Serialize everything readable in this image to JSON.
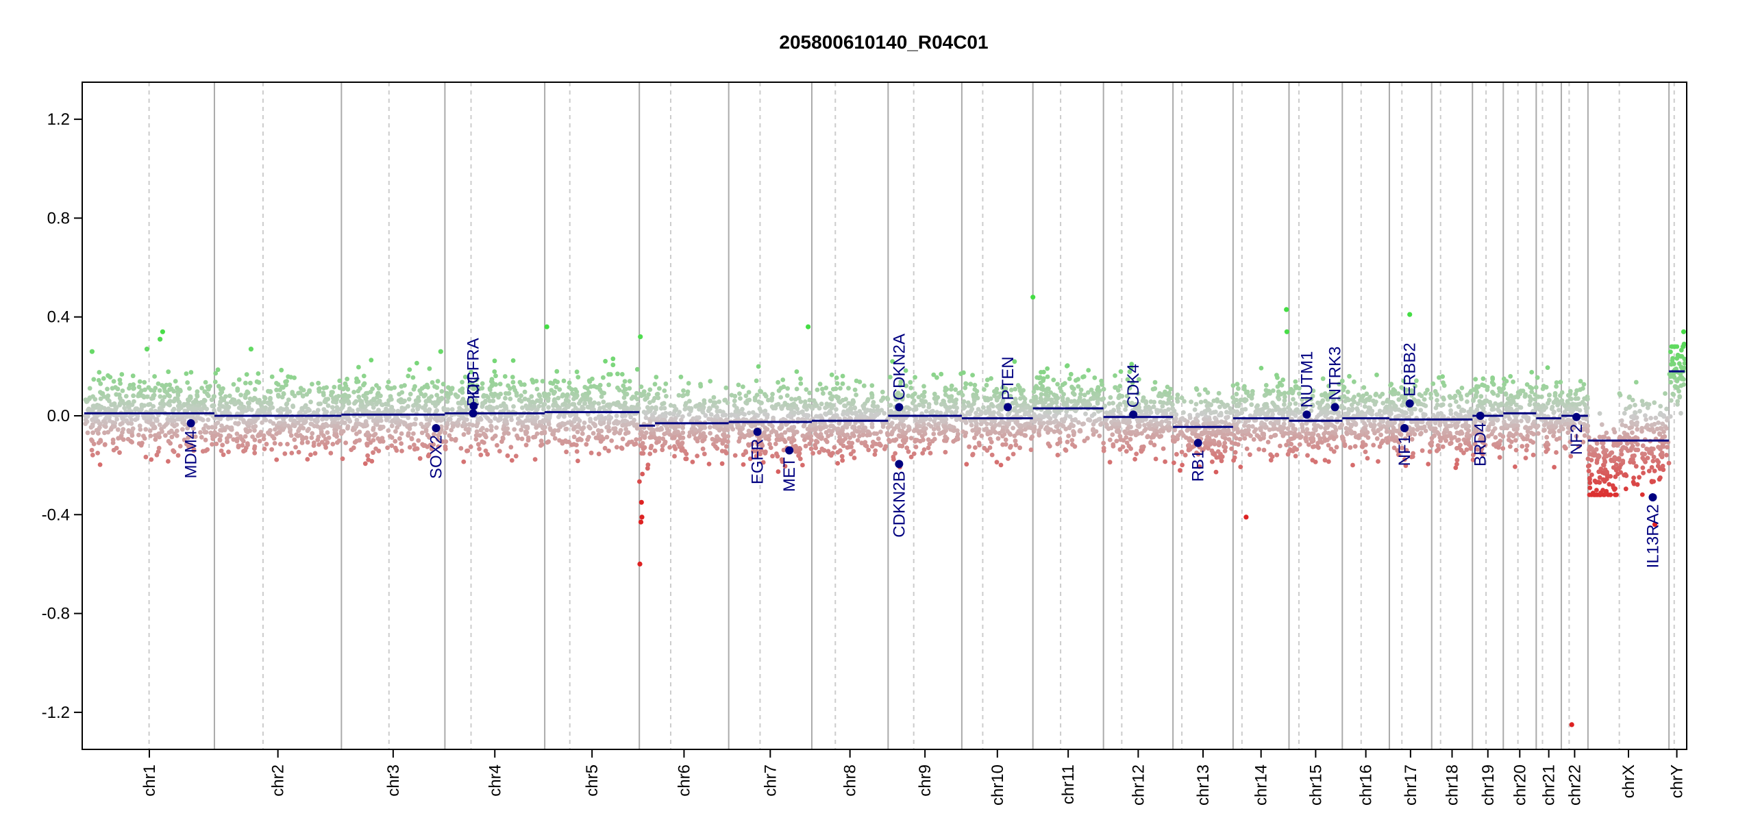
{
  "chart_data": {
    "type": "scatter",
    "title": "205800610140_R04C01",
    "xlabel": "",
    "ylabel": "",
    "ylim": [
      -1.35,
      1.35
    ],
    "yticks": [
      -1.2,
      -0.8,
      -0.4,
      0.0,
      0.4,
      0.8,
      1.2
    ],
    "ytick_labels": [
      "-1.2",
      "-0.8",
      "-0.4",
      "0.0",
      "0.4",
      "0.8",
      "1.2"
    ],
    "colors": {
      "gain": "#44dd44",
      "loss": "#dd2222",
      "neutral": "#cccccc",
      "segment": "#000080",
      "gene": "#000080",
      "chr_border": "#aaaaaa",
      "centromere": "#cccccc"
    },
    "chromosomes": [
      {
        "label": "chr1",
        "length": 249,
        "centromere": 124,
        "segments": [
          {
            "from": 0,
            "to": 249,
            "value": 0.01
          }
        ]
      },
      {
        "label": "chr2",
        "length": 243,
        "centromere": 93,
        "segments": [
          {
            "from": 0,
            "to": 243,
            "value": 0.0
          }
        ]
      },
      {
        "label": "chr3",
        "length": 198,
        "centromere": 91,
        "segments": [
          {
            "from": 0,
            "to": 198,
            "value": 0.005
          }
        ]
      },
      {
        "label": "chr4",
        "length": 191,
        "centromere": 50,
        "segments": [
          {
            "from": 0,
            "to": 191,
            "value": 0.01
          }
        ]
      },
      {
        "label": "chr5",
        "length": 181,
        "centromere": 48,
        "segments": [
          {
            "from": 0,
            "to": 181,
            "value": 0.015
          }
        ]
      },
      {
        "label": "chr6",
        "length": 171,
        "centromere": 60,
        "segments": [
          {
            "from": 0,
            "to": 30,
            "value": -0.04
          },
          {
            "from": 30,
            "to": 171,
            "value": -0.03
          }
        ]
      },
      {
        "label": "chr7",
        "length": 159,
        "centromere": 60,
        "segments": [
          {
            "from": 0,
            "to": 159,
            "value": -0.025
          }
        ]
      },
      {
        "label": "chr8",
        "length": 146,
        "centromere": 45,
        "segments": [
          {
            "from": 0,
            "to": 146,
            "value": -0.02
          }
        ]
      },
      {
        "label": "chr9",
        "length": 141,
        "centromere": 49,
        "segments": [
          {
            "from": 0,
            "to": 141,
            "value": 0.0
          }
        ]
      },
      {
        "label": "chr10",
        "length": 136,
        "centromere": 40,
        "segments": [
          {
            "from": 0,
            "to": 136,
            "value": -0.01
          }
        ]
      },
      {
        "label": "chr11",
        "length": 135,
        "centromere": 53,
        "segments": [
          {
            "from": 0,
            "to": 135,
            "value": 0.03
          }
        ]
      },
      {
        "label": "chr12",
        "length": 133,
        "centromere": 35,
        "segments": [
          {
            "from": 0,
            "to": 133,
            "value": -0.005
          }
        ]
      },
      {
        "label": "chr13",
        "length": 115,
        "centromere": 17,
        "segments": [
          {
            "from": 0,
            "to": 115,
            "value": -0.045
          }
        ]
      },
      {
        "label": "chr14",
        "length": 107,
        "centromere": 17,
        "segments": [
          {
            "from": 0,
            "to": 107,
            "value": -0.01
          }
        ]
      },
      {
        "label": "chr15",
        "length": 102,
        "centromere": 19,
        "segments": [
          {
            "from": 0,
            "to": 102,
            "value": -0.02
          }
        ]
      },
      {
        "label": "chr16",
        "length": 90,
        "centromere": 36,
        "segments": [
          {
            "from": 0,
            "to": 90,
            "value": -0.01
          }
        ]
      },
      {
        "label": "chr17",
        "length": 81,
        "centromere": 24,
        "segments": [
          {
            "from": 0,
            "to": 81,
            "value": -0.015
          }
        ]
      },
      {
        "label": "chr18",
        "length": 78,
        "centromere": 17,
        "segments": [
          {
            "from": 0,
            "to": 78,
            "value": -0.015
          }
        ]
      },
      {
        "label": "chr19",
        "length": 59,
        "centromere": 26,
        "segments": [
          {
            "from": 0,
            "to": 59,
            "value": 0.0
          }
        ]
      },
      {
        "label": "chr20",
        "length": 63,
        "centromere": 28,
        "segments": [
          {
            "from": 0,
            "to": 63,
            "value": 0.01
          }
        ]
      },
      {
        "label": "chr21",
        "length": 48,
        "centromere": 12,
        "segments": [
          {
            "from": 0,
            "to": 48,
            "value": -0.01
          }
        ]
      },
      {
        "label": "chr22",
        "length": 51,
        "centromere": 15,
        "segments": [
          {
            "from": 0,
            "to": 51,
            "value": 0.0
          }
        ]
      },
      {
        "label": "chrX",
        "length": 155,
        "centromere": 60,
        "segments": [
          {
            "from": 0,
            "to": 155,
            "value": -0.1
          }
        ]
      },
      {
        "label": "chrY",
        "length": 30,
        "centromere": 10,
        "segments": [
          {
            "from": 0,
            "to": 30,
            "value": 0.18
          }
        ]
      }
    ],
    "genes": [
      {
        "name": "MDM4",
        "chr": "chr1",
        "pos": 204,
        "value": -0.03,
        "label_side": "below"
      },
      {
        "name": "SOX2",
        "chr": "chr3",
        "pos": 181,
        "value": -0.05,
        "label_side": "below"
      },
      {
        "name": "KIT",
        "chr": "chr4",
        "pos": 55,
        "value": 0.04,
        "label_side": "above"
      },
      {
        "name": "PDGFRA",
        "chr": "chr4",
        "pos": 54,
        "value": 0.01,
        "label_side": "above"
      },
      {
        "name": "EGFR",
        "chr": "chr7",
        "pos": 55,
        "value": -0.065,
        "label_side": "below"
      },
      {
        "name": "MET",
        "chr": "chr7",
        "pos": 116,
        "value": -0.14,
        "label_side": "below"
      },
      {
        "name": "CDKN2A",
        "chr": "chr9",
        "pos": 21,
        "value": 0.035,
        "label_side": "above"
      },
      {
        "name": "CDKN2B",
        "chr": "chr9",
        "pos": 21,
        "value": -0.195,
        "label_side": "below"
      },
      {
        "name": "PTEN",
        "chr": "chr10",
        "pos": 88,
        "value": 0.035,
        "label_side": "above"
      },
      {
        "name": "CDK4",
        "chr": "chr12",
        "pos": 57,
        "value": 0.005,
        "label_side": "above"
      },
      {
        "name": "RB1",
        "chr": "chr13",
        "pos": 48,
        "value": -0.11,
        "label_side": "below"
      },
      {
        "name": "NUTM1",
        "chr": "chr15",
        "pos": 34,
        "value": 0.005,
        "label_side": "above"
      },
      {
        "name": "NTRK3",
        "chr": "chr15",
        "pos": 88,
        "value": 0.035,
        "label_side": "above"
      },
      {
        "name": "NF1",
        "chr": "chr17",
        "pos": 29,
        "value": -0.05,
        "label_side": "below"
      },
      {
        "name": "ERBB2",
        "chr": "chr17",
        "pos": 39,
        "value": 0.05,
        "label_side": "above"
      },
      {
        "name": "BRD4",
        "chr": "chr19",
        "pos": 15,
        "value": 0.0,
        "label_side": "below"
      },
      {
        "name": "NF2",
        "chr": "chr22",
        "pos": 29,
        "value": -0.005,
        "label_side": "below"
      },
      {
        "name": "IL13RA2",
        "chr": "chrX",
        "pos": 124,
        "value": -0.33,
        "label_side": "below"
      }
    ],
    "outliers": [
      {
        "chr": "chr1",
        "pos": 150,
        "value": 0.34
      },
      {
        "chr": "chr1",
        "pos": 145,
        "value": 0.31
      },
      {
        "chr": "chr1",
        "pos": 120,
        "value": 0.27
      },
      {
        "chr": "chr1",
        "pos": 15,
        "value": 0.26
      },
      {
        "chr": "chr2",
        "pos": 70,
        "value": 0.27
      },
      {
        "chr": "chr3",
        "pos": 190,
        "value": 0.26
      },
      {
        "chr": "chr5",
        "pos": 4,
        "value": 0.36
      },
      {
        "chr": "chr6",
        "pos": 2,
        "value": 0.32
      },
      {
        "chr": "chr6",
        "pos": 1,
        "value": -0.6
      },
      {
        "chr": "chr6",
        "pos": 3,
        "value": -0.43
      },
      {
        "chr": "chr6",
        "pos": 5,
        "value": -0.41
      },
      {
        "chr": "chr6",
        "pos": 4,
        "value": -0.35
      },
      {
        "chr": "chr7",
        "pos": 152,
        "value": 0.36
      },
      {
        "chr": "chr11",
        "pos": 0,
        "value": 0.48
      },
      {
        "chr": "chr14",
        "pos": 102,
        "value": 0.43
      },
      {
        "chr": "chr14",
        "pos": 103,
        "value": 0.34
      },
      {
        "chr": "chr14",
        "pos": 25,
        "value": -0.41
      },
      {
        "chr": "chr17",
        "pos": 39,
        "value": 0.41
      },
      {
        "chr": "chr22",
        "pos": 20,
        "value": -1.25
      },
      {
        "chr": "chrY",
        "pos": 28,
        "value": 0.34
      },
      {
        "chr": "chrY",
        "pos": 29,
        "value": 0.29
      },
      {
        "chr": "chrX",
        "pos": 128,
        "value": -0.44
      }
    ]
  }
}
